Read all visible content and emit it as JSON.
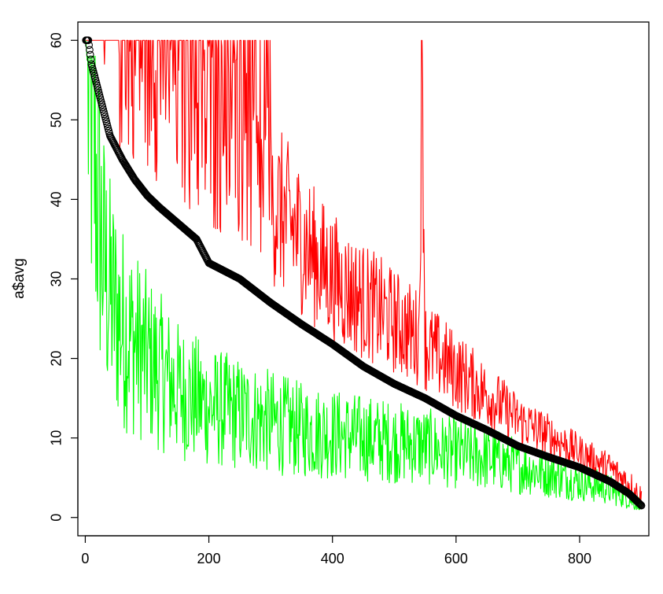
{
  "chart_data": {
    "type": "line",
    "title": "",
    "xlabel": "",
    "ylabel": "a$avg",
    "xlim": [
      -12,
      912
    ],
    "ylim": [
      -2.3,
      62.3
    ],
    "x_ticks": [
      0,
      200,
      400,
      600,
      800
    ],
    "y_ticks": [
      0,
      10,
      20,
      30,
      40,
      50,
      60
    ],
    "x_tick_labels": [
      "0",
      "200",
      "400",
      "600",
      "800"
    ],
    "y_tick_labels": [
      "0",
      "10",
      "20",
      "30",
      "40",
      "50",
      "60"
    ],
    "grid": false,
    "legend": "none",
    "n_points": 900,
    "series": [
      {
        "role": "max",
        "style": "line",
        "color": "#ff0000",
        "x": [
          1,
          5,
          10,
          20,
          30,
          40,
          50,
          60,
          80,
          100,
          120,
          150,
          180,
          200,
          230,
          260,
          300,
          340,
          380,
          420,
          460,
          500,
          540,
          545,
          550,
          600,
          650,
          700,
          750,
          800,
          850,
          880,
          900
        ],
        "values": [
          60,
          60,
          60,
          60,
          60,
          60,
          60,
          60,
          60,
          58,
          56,
          53,
          50,
          48,
          46,
          43,
          39,
          35,
          31,
          28,
          26,
          24,
          22,
          60,
          21,
          18,
          15,
          12,
          10,
          8,
          6,
          4,
          2
        ]
      },
      {
        "role": "average",
        "style": "points",
        "color": "#000000",
        "x": [
          1,
          5,
          10,
          20,
          30,
          40,
          60,
          80,
          100,
          120,
          150,
          180,
          200,
          250,
          300,
          350,
          400,
          450,
          500,
          550,
          600,
          650,
          700,
          750,
          800,
          850,
          880,
          900
        ],
        "values": [
          60,
          60,
          57,
          54,
          51,
          48,
          45,
          42.5,
          40.5,
          39,
          37,
          35,
          32,
          30,
          27,
          24.3,
          21.8,
          19,
          16.8,
          15,
          12.8,
          11,
          9,
          7.6,
          6.3,
          4.5,
          3,
          1.5
        ]
      },
      {
        "role": "min",
        "style": "line",
        "color": "#00ff00",
        "x": [
          1,
          5,
          10,
          15,
          20,
          25,
          30,
          40,
          60,
          80,
          100,
          150,
          200,
          250,
          300,
          350,
          400,
          450,
          500,
          550,
          600,
          650,
          700,
          750,
          800,
          850,
          900
        ],
        "values": [
          60,
          55,
          50,
          45,
          40,
          36,
          32,
          28,
          24,
          22,
          20,
          16,
          14,
          13,
          12,
          11,
          10.5,
          10,
          9.5,
          9,
          8,
          7.5,
          6.5,
          5.5,
          4.5,
          3.5,
          1.5
        ]
      }
    ]
  }
}
